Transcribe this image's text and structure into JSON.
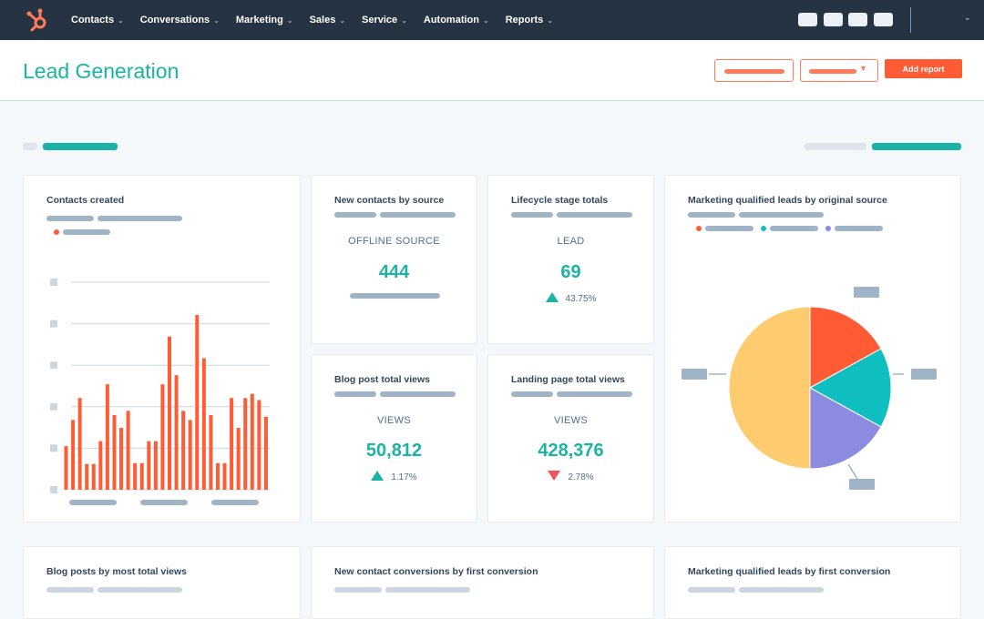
{
  "nav": {
    "items": [
      "Contacts",
      "Conversations",
      "Marketing",
      "Sales",
      "Service",
      "Automation",
      "Reports"
    ],
    "chevron": "⌄"
  },
  "header": {
    "title": "Lead Generation",
    "add_report": "Add report"
  },
  "colors": {
    "accent": "#1ab3a6",
    "brand": "#ff5c35",
    "nav": "#253342",
    "orange": "#ff5c35",
    "teal": "#0fbfbf",
    "purple": "#8b8be0",
    "yellow": "#ffcb6f"
  },
  "cards": {
    "contacts_created": {
      "title": "Contacts created"
    },
    "new_contacts": {
      "title": "New contacts by source",
      "label": "OFFLINE SOURCE",
      "value": "444"
    },
    "lifecycle": {
      "title": "Lifecycle stage totals",
      "label": "LEAD",
      "value": "69",
      "change": "43.75%",
      "direction": "up"
    },
    "blog_views": {
      "title": "Blog post total views",
      "label": "VIEWS",
      "value": "50,812",
      "change": "1.17%",
      "direction": "up"
    },
    "landing_views": {
      "title": "Landing page total views",
      "label": "VIEWS",
      "value": "428,376",
      "change": "2.78%",
      "direction": "down"
    },
    "mql_source": {
      "title": "Marketing qualified leads by original source"
    },
    "blog_posts": {
      "title": "Blog posts by most total views"
    },
    "conversions": {
      "title": "New contact conversions by first conversion"
    },
    "mql_first": {
      "title": "Marketing qualified leads by first conversion"
    }
  },
  "chart_data": [
    {
      "type": "bar",
      "ylim": [
        0,
        5
      ],
      "grid": true,
      "values": [
        1.05,
        1.68,
        2.21,
        0.62,
        0.62,
        1.17,
        2.54,
        1.8,
        1.49,
        1.9,
        0.64,
        0.64,
        1.17,
        1.17,
        2.54,
        3.69,
        2.76,
        1.9,
        1.68,
        4.21,
        3.17,
        1.8,
        0.64,
        0.64,
        2.21,
        1.49,
        2.21,
        2.31,
        2.16,
        1.76
      ],
      "color": "#ff5c35"
    },
    {
      "type": "pie",
      "values": [
        17,
        16,
        17,
        50
      ],
      "colors": [
        "#ff5c35",
        "#0fbfbf",
        "#8b8be0",
        "#ffcb6f"
      ]
    }
  ]
}
